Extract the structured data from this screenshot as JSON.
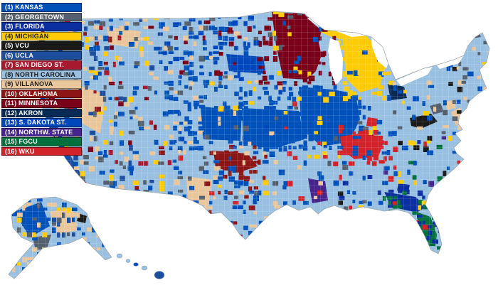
{
  "legend": {
    "items": [
      {
        "label": "(1) KANSAS",
        "team": "KANSAS",
        "color": "#0051ba"
      },
      {
        "label": "(2) GEORGETOWN",
        "team": "GEORGETOWN",
        "color": "#55606e"
      },
      {
        "label": "(3) FLORIDA",
        "team": "FLORIDA",
        "color": "#0b2fa0"
      },
      {
        "label": "(4) MICHIGAN",
        "team": "MICHIGAN",
        "color": "#ffcb05"
      },
      {
        "label": "(5) VCU",
        "team": "VCU",
        "color": "#1a1a18"
      },
      {
        "label": "(6) UCLA",
        "team": "UCLA",
        "color": "#1d4e9e"
      },
      {
        "label": "(7) SAN DIEGO ST.",
        "team": "SAN DIEGO ST.",
        "color": "#a6192e"
      },
      {
        "label": "(8) NORTH CAROLINA",
        "team": "NORTH CAROLINA",
        "color": "#99c0e0"
      },
      {
        "label": "(9) VILLANOVA",
        "team": "VILLANOVA",
        "color": "#e9c69b"
      },
      {
        "label": "(10) OKLAHOMA",
        "team": "OKLAHOMA",
        "color": "#8c1515"
      },
      {
        "label": "(11) MINNESOTA",
        "team": "MINNESOTA",
        "color": "#7a0019"
      },
      {
        "label": "(12) AKRON",
        "team": "AKRON",
        "color": "#0a2a56"
      },
      {
        "label": "(13) S. DAKOTA ST.",
        "team": "S. DAKOTA ST.",
        "color": "#0047bb"
      },
      {
        "label": "(14) NORTHW. STATE",
        "team": "NORTHW. STATE",
        "color": "#46248c"
      },
      {
        "label": "(15) FGCU",
        "team": "FGCU",
        "color": "#00703c"
      },
      {
        "label": "(16) WKU",
        "team": "WKU",
        "color": "#d2232a"
      }
    ]
  },
  "map": {
    "base_team": "NORTH CAROLINA",
    "base_color": "#99c0e0",
    "water_color": "#ffffff",
    "county_line_color": "#ffffff",
    "regions": [
      "Contiguous United States",
      "Alaska",
      "Hawaii"
    ]
  }
}
